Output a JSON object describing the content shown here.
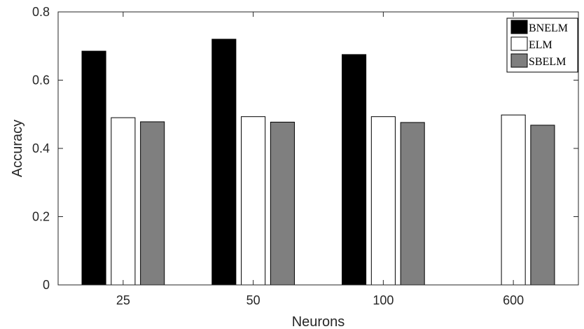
{
  "chart_data": {
    "type": "bar",
    "title": "",
    "xlabel": "Neurons",
    "ylabel": "Accuracy",
    "categories": [
      "25",
      "50",
      "100",
      "600"
    ],
    "ylim": [
      0,
      0.8
    ],
    "yticks": [
      "0",
      "0.2",
      "0.4",
      "0.6",
      "0.8"
    ],
    "grid": false,
    "legend_position": "top-right",
    "series": [
      {
        "name": "BNELM",
        "values": [
          0.685,
          0.72,
          0.675,
          0
        ],
        "color": "#000000"
      },
      {
        "name": "ELM",
        "values": [
          0.49,
          0.493,
          0.493,
          0.498
        ],
        "color": "#ffffff"
      },
      {
        "name": "SBELM",
        "values": [
          0.478,
          0.477,
          0.476,
          0.468
        ],
        "color": "#7f7f7f"
      }
    ]
  }
}
